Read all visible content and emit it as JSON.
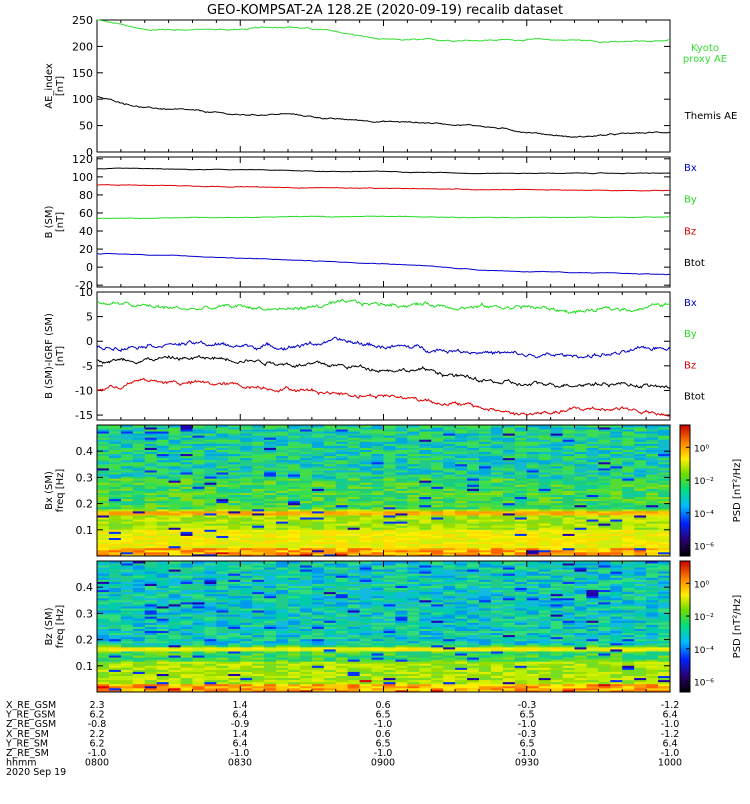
{
  "title": "GEO-KOMPSAT-2A 128.2E (2020-09-19) recalib dataset",
  "colors": {
    "black": "#000000",
    "red": "#e00000",
    "green": "#22dd22",
    "blue": "#0000cc",
    "kyoto": "#33dd33"
  },
  "chart_data": [
    {
      "type": "line",
      "panel": "ae",
      "ylabel": [
        "AE_index",
        "[nT]"
      ],
      "ylim": [
        0,
        250
      ],
      "yticks": [
        "0",
        "50",
        "100",
        "150",
        "200",
        "250"
      ],
      "x": [
        "0800",
        "0810",
        "0820",
        "0830",
        "0840",
        "0850",
        "0900",
        "0910",
        "0920",
        "0930",
        "0940",
        "0950",
        "1000"
      ],
      "series": [
        {
          "name": "Kyoto proxy AE",
          "legend": [
            "Kyoto",
            "proxy AE"
          ],
          "color": "#33dd33",
          "values": [
            250,
            232,
            232,
            232,
            238,
            228,
            212,
            212,
            212,
            213,
            212,
            208,
            212
          ]
        },
        {
          "name": "Themis AE",
          "legend": [
            "Themis AE"
          ],
          "color": "#000000",
          "values": [
            104,
            84,
            78,
            70,
            72,
            62,
            58,
            55,
            50,
            38,
            28,
            34,
            38
          ]
        }
      ]
    },
    {
      "type": "line",
      "panel": "bsm",
      "ylabel": [
        "B (SM)",
        "[nT]"
      ],
      "ylim": [
        -22,
        122
      ],
      "yticks": [
        "-20",
        "0",
        "20",
        "40",
        "60",
        "80",
        "100",
        "120"
      ],
      "legend": [
        "Bx",
        "By",
        "Bz",
        "Btot"
      ],
      "legend_colors": [
        "#0000cc",
        "#22dd22",
        "#e00000",
        "#000000"
      ],
      "x": [
        "0800",
        "0810",
        "0820",
        "0830",
        "0840",
        "0850",
        "0900",
        "0910",
        "0920",
        "0930",
        "0940",
        "0950",
        "1000"
      ],
      "series": [
        {
          "name": "Btot",
          "color": "#000000",
          "values": [
            109,
            109,
            108,
            108,
            107,
            106,
            106,
            105,
            104,
            104,
            104,
            104,
            104
          ]
        },
        {
          "name": "Bz",
          "color": "#e00000",
          "values": [
            91,
            91,
            90,
            89,
            88,
            88,
            87,
            87,
            86,
            86,
            85,
            85,
            85
          ]
        },
        {
          "name": "By",
          "color": "#22dd22",
          "values": [
            54,
            54,
            55,
            55,
            56,
            56,
            56,
            56,
            55,
            55,
            55,
            55,
            56
          ]
        },
        {
          "name": "Bx",
          "color": "#0000cc",
          "values": [
            15,
            14,
            12,
            10,
            8,
            6,
            4,
            1,
            -3,
            -5,
            -6,
            -7,
            -8
          ]
        }
      ]
    },
    {
      "type": "line",
      "panel": "dbsm",
      "ylabel": [
        "B (SM)-IGRF (SM)",
        "[nT]"
      ],
      "ylim": [
        -16,
        10
      ],
      "yticks": [
        "-15",
        "-10",
        "-5",
        "0",
        "5",
        "10"
      ],
      "legend": [
        "Bx",
        "By",
        "Bz",
        "Btot"
      ],
      "legend_colors": [
        "#0000cc",
        "#22dd22",
        "#e00000",
        "#000000"
      ],
      "x": [
        "0800",
        "0810",
        "0820",
        "0830",
        "0840",
        "0850",
        "0900",
        "0910",
        "0920",
        "0930",
        "0940",
        "0950",
        "1000"
      ],
      "series": [
        {
          "name": "By",
          "color": "#22dd22",
          "values": [
            8,
            7,
            6.5,
            7,
            6.5,
            7.5,
            7.5,
            7.5,
            7,
            7,
            6,
            6.5,
            7.5
          ]
        },
        {
          "name": "Bx",
          "color": "#0000cc",
          "values": [
            -1.5,
            -0.5,
            -0.5,
            -1,
            -1,
            0,
            -1,
            -1.5,
            -2,
            -3,
            -3,
            -2.5,
            -1
          ]
        },
        {
          "name": "Btot",
          "color": "#000000",
          "values": [
            -4,
            -3.5,
            -3.5,
            -3.5,
            -4.5,
            -5,
            -5.5,
            -6,
            -8,
            -9,
            -8.5,
            -8.5,
            -9.5
          ]
        },
        {
          "name": "Bz",
          "color": "#e00000",
          "values": [
            -10,
            -8,
            -8.5,
            -9,
            -9.5,
            -10.5,
            -11,
            -12,
            -13.5,
            -15,
            -14,
            -13.5,
            -15.5
          ]
        }
      ]
    },
    {
      "type": "heatmap",
      "panel": "bx_spec",
      "ylabel": [
        "Bx (SM)",
        "freq [Hz]"
      ],
      "ylim": [
        0,
        0.5
      ],
      "yticks": [
        "0.1",
        "0.2",
        "0.3",
        "0.4"
      ],
      "colorbar_label": "PSD [nT²/Hz]",
      "colorbar_ticks": [
        "10⁰",
        "10⁻²",
        "10⁻⁴",
        "10⁻⁶"
      ],
      "bands": [
        {
          "f": [
            0.0,
            0.03
          ],
          "level": "yellow-orange"
        },
        {
          "f": [
            0.03,
            0.1
          ],
          "level": "yellow"
        },
        {
          "f": [
            0.1,
            0.18
          ],
          "level": "yellow-green"
        },
        {
          "f": [
            0.16,
            0.17
          ],
          "level": "orange"
        },
        {
          "f": [
            0.18,
            0.3
          ],
          "level": "green"
        },
        {
          "f": [
            0.3,
            0.5
          ],
          "level": "cyan-green"
        }
      ]
    },
    {
      "type": "heatmap",
      "panel": "bz_spec",
      "ylabel": [
        "Bz (SM)",
        "freq [Hz]"
      ],
      "ylim": [
        0,
        0.5
      ],
      "yticks": [
        "0.1",
        "0.2",
        "0.3",
        "0.4"
      ],
      "colorbar_label": "PSD [nT²/Hz]",
      "colorbar_ticks": [
        "10⁰",
        "10⁻²",
        "10⁻⁴",
        "10⁻⁶"
      ],
      "bands": [
        {
          "f": [
            0.0,
            0.03
          ],
          "level": "yellow-orange"
        },
        {
          "f": [
            0.03,
            0.12
          ],
          "level": "yellow-green"
        },
        {
          "f": [
            0.12,
            0.18
          ],
          "level": "green"
        },
        {
          "f": [
            0.16,
            0.17
          ],
          "level": "yellow"
        },
        {
          "f": [
            0.18,
            0.5
          ],
          "level": "cyan"
        }
      ]
    }
  ],
  "ephemeris": {
    "labels": [
      "X_RE_GSM",
      "Y_RE_GSM",
      "Z_RE_GSM",
      "X_RE_SM",
      "Y_RE_SM",
      "Z_RE_SM",
      "hhmm"
    ],
    "columns": [
      [
        "2.3",
        "6.2",
        "-0.8",
        "2.2",
        "6.2",
        "-1.0",
        "0800"
      ],
      [
        "1.4",
        "6.4",
        "-0.9",
        "1.4",
        "6.4",
        "-1.0",
        "0830"
      ],
      [
        "0.6",
        "6.5",
        "-1.0",
        "0.6",
        "6.5",
        "-1.0",
        "0900"
      ],
      [
        "-0.3",
        "6.5",
        "-1.0",
        "-0.3",
        "6.5",
        "-1.0",
        "0930"
      ],
      [
        "-1.2",
        "6.4",
        "-1.0",
        "-1.2",
        "6.4",
        "-1.0",
        "1000"
      ]
    ],
    "date": "2020 Sep 19"
  }
}
